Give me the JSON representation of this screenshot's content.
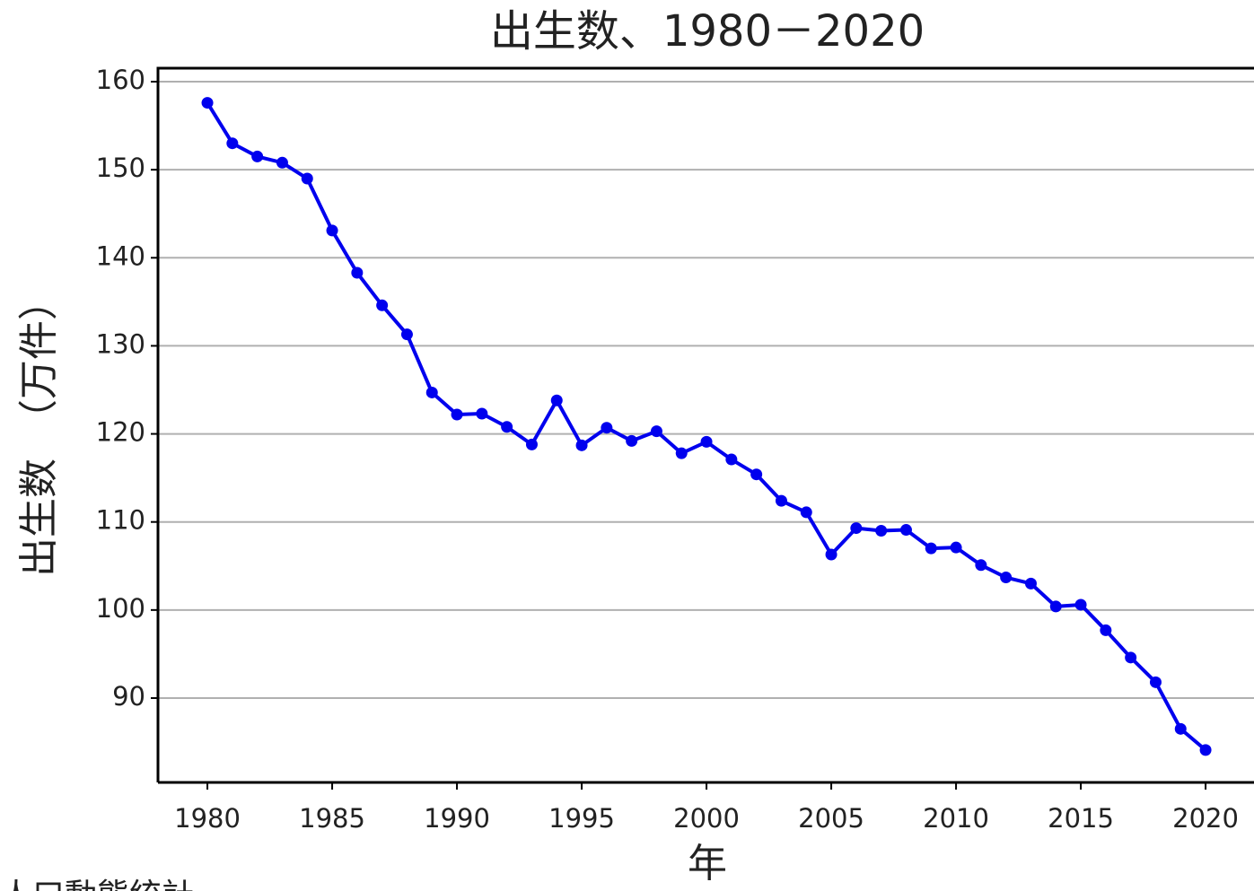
{
  "chart_data": {
    "type": "line",
    "title": "出生数、1980－2020",
    "xlabel": "年",
    "ylabel": "出生数　（万件）",
    "source": "人口動態統計",
    "x": [
      1980,
      1981,
      1982,
      1983,
      1984,
      1985,
      1986,
      1987,
      1988,
      1989,
      1990,
      1991,
      1992,
      1993,
      1994,
      1995,
      1996,
      1997,
      1998,
      1999,
      2000,
      2001,
      2002,
      2003,
      2004,
      2005,
      2006,
      2007,
      2008,
      2009,
      2010,
      2011,
      2012,
      2013,
      2014,
      2015,
      2016,
      2017,
      2018,
      2019,
      2020
    ],
    "series": [
      {
        "name": "出生数",
        "color": "#0000ee",
        "values": [
          157.6,
          153.0,
          151.5,
          150.8,
          149.0,
          143.1,
          138.3,
          134.6,
          131.3,
          124.7,
          122.2,
          122.3,
          120.8,
          118.8,
          123.8,
          118.7,
          120.7,
          119.2,
          120.3,
          117.8,
          119.1,
          117.1,
          115.4,
          112.4,
          111.1,
          106.3,
          109.3,
          109.0,
          109.1,
          107.0,
          107.1,
          105.1,
          103.7,
          103.0,
          100.4,
          100.6,
          97.7,
          94.6,
          91.8,
          86.5,
          84.1
        ]
      }
    ],
    "xlim": [
      1978.02,
      2021.94
    ],
    "ylim": [
      80.42,
      161.53
    ],
    "xticks": [
      1980,
      1985,
      1990,
      1995,
      2000,
      2005,
      2010,
      2015,
      2020
    ],
    "yticks": [
      90,
      100,
      110,
      120,
      130,
      140,
      150,
      160
    ],
    "grid": true
  }
}
